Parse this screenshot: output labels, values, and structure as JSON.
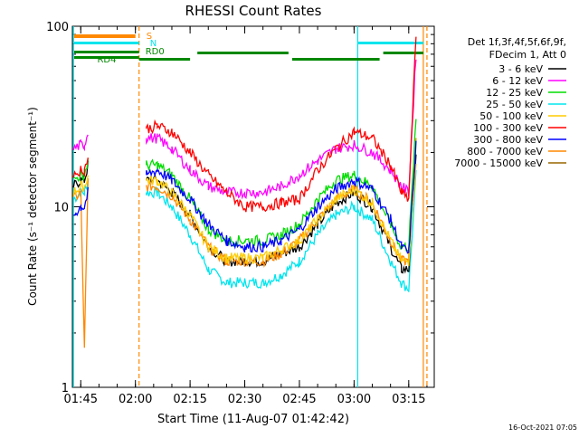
{
  "chart_data": {
    "type": "line",
    "title": "RHESSI Count Rates",
    "xlabel": "Start Time (11-Aug-07 01:42:42)",
    "ylabel": "Count Rate (s⁻¹ detector segment⁻¹)",
    "ylog": true,
    "ylim": [
      1,
      100
    ],
    "xlim": [
      "01:42:42",
      "03:22:00"
    ],
    "x_ticks": [
      "01:45",
      "02:00",
      "02:15",
      "02:30",
      "02:45",
      "03:00",
      "03:15"
    ],
    "y_ticks": [
      "1",
      "10",
      "100"
    ],
    "timestamp": "16-Oct-2021 07:05",
    "legend_position": "right",
    "legend_header": [
      "Det 1f,3f,4f,5f,6f,9f,",
      "FDecim 1, Att 0"
    ],
    "series": [
      {
        "name": "3 - 6 keV",
        "color": "#000000",
        "x": [
          "01:43",
          "01:45",
          "01:46",
          "01:47",
          "02:03",
          "02:06",
          "02:10",
          "02:15",
          "02:20",
          "02:25",
          "02:30",
          "02:35",
          "02:40",
          "02:45",
          "02:50",
          "02:55",
          "03:00",
          "03:05",
          "03:10",
          "03:13",
          "03:15",
          "03:17"
        ],
        "values": [
          13,
          14,
          14,
          17,
          14,
          14,
          12,
          9,
          6,
          5,
          5,
          5,
          5.5,
          6,
          8,
          10.5,
          12,
          10,
          6,
          4.5,
          4.5,
          20
        ]
      },
      {
        "name": "6 - 12 keV",
        "color": "#ff00ff",
        "x": [
          "01:43",
          "01:45",
          "01:46",
          "01:47",
          "02:03",
          "02:06",
          "02:10",
          "02:15",
          "02:20",
          "02:25",
          "02:30",
          "02:35",
          "02:40",
          "02:45",
          "02:50",
          "02:55",
          "03:00",
          "03:05",
          "03:10",
          "03:13",
          "03:15",
          "03:17"
        ],
        "values": [
          21,
          22,
          22,
          26,
          24,
          24,
          21,
          16,
          13,
          12,
          12,
          12,
          13,
          15,
          18,
          21,
          22,
          20,
          16,
          13,
          12,
          70
        ]
      },
      {
        "name": "12 - 25 keV",
        "color": "#00dd00",
        "x": [
          "01:43",
          "01:45",
          "01:46",
          "01:47",
          "02:03",
          "02:06",
          "02:10",
          "02:15",
          "02:20",
          "02:25",
          "02:30",
          "02:35",
          "02:40",
          "02:45",
          "02:50",
          "02:55",
          "03:00",
          "03:05",
          "03:10",
          "03:13",
          "03:15",
          "03:17"
        ],
        "values": [
          14,
          15,
          15,
          18,
          17,
          17,
          15,
          11,
          7.5,
          6.5,
          6.5,
          6.5,
          7,
          8,
          11,
          14,
          15,
          13,
          8,
          6,
          6,
          30
        ]
      },
      {
        "name": "25 - 50 keV",
        "color": "#00e5ee",
        "x": [
          "01:43",
          "01:45",
          "01:46",
          "01:47",
          "02:03",
          "02:06",
          "02:10",
          "02:15",
          "02:20",
          "02:25",
          "02:30",
          "02:35",
          "02:40",
          "02:45",
          "02:50",
          "02:55",
          "03:00",
          "03:05",
          "03:10",
          "03:13",
          "03:15",
          "03:17"
        ],
        "values": [
          11,
          12,
          12,
          14,
          12,
          12,
          10,
          7,
          4.5,
          3.8,
          3.8,
          3.8,
          4.2,
          5,
          7,
          9,
          10,
          8.5,
          5,
          3.8,
          3.5,
          15
        ]
      },
      {
        "name": "50 - 100 keV",
        "color": "#ffcc00",
        "x": [
          "01:43",
          "01:45",
          "01:46",
          "01:47",
          "02:03",
          "02:06",
          "02:10",
          "02:15",
          "02:20",
          "02:25",
          "02:30",
          "02:35",
          "02:40",
          "02:45",
          "02:50",
          "02:55",
          "03:00",
          "03:05",
          "03:10",
          "03:13",
          "03:15",
          "03:17"
        ],
        "values": [
          12,
          13,
          13,
          15,
          14,
          14,
          12,
          9,
          6,
          5.2,
          5.2,
          5.2,
          5.8,
          6.5,
          8.5,
          11,
          12.5,
          10.5,
          6.5,
          5,
          5,
          18
        ]
      },
      {
        "name": "100 - 300 keV",
        "color": "#ff0000",
        "x": [
          "01:43",
          "01:45",
          "01:46",
          "01:47",
          "02:03",
          "02:06",
          "02:10",
          "02:15",
          "02:20",
          "02:25",
          "02:30",
          "02:35",
          "02:40",
          "02:45",
          "02:50",
          "02:55",
          "03:00",
          "03:05",
          "03:10",
          "03:13",
          "03:15",
          "03:17"
        ],
        "values": [
          15,
          16,
          16,
          19,
          27,
          28,
          26,
          20,
          15,
          12,
          10,
          10,
          10.5,
          11,
          16,
          21,
          26,
          24,
          17,
          12,
          11,
          90
        ]
      },
      {
        "name": "300 - 800 keV",
        "color": "#0000ff",
        "x": [
          "01:43",
          "01:45",
          "01:46",
          "01:47",
          "02:03",
          "02:06",
          "02:10",
          "02:15",
          "02:20",
          "02:25",
          "02:30",
          "02:35",
          "02:40",
          "02:45",
          "02:50",
          "02:55",
          "03:00",
          "03:05",
          "03:10",
          "03:13",
          "03:15",
          "03:17"
        ],
        "values": [
          9,
          10,
          10,
          12,
          15,
          16,
          14,
          11,
          8,
          6.5,
          6,
          6,
          6.5,
          7.5,
          10,
          12.5,
          14,
          12.5,
          8.5,
          6,
          5.5,
          22
        ]
      },
      {
        "name": "800 - 7000 keV",
        "color": "#ff8800",
        "x": [
          "01:43",
          "01:45",
          "01:46",
          "01:47",
          "02:03",
          "02:06",
          "02:10",
          "02:15",
          "02:20",
          "02:25",
          "02:30",
          "02:35",
          "02:40",
          "02:45",
          "02:50",
          "02:55",
          "03:00",
          "03:05",
          "03:10",
          "03:13",
          "03:15",
          "03:17"
        ],
        "values": [
          11,
          12,
          1.6,
          14,
          13,
          13,
          11.5,
          8.5,
          6,
          5,
          5,
          5,
          5.5,
          6.5,
          8.5,
          11,
          12.5,
          10.5,
          6.5,
          5,
          5,
          25
        ]
      },
      {
        "name": "7000 - 15000 keV",
        "color": "#996600",
        "x": [
          "01:43",
          "01:45",
          "01:46",
          "01:47",
          "02:03",
          "02:06",
          "02:10",
          "02:15",
          "02:20",
          "02:25",
          "02:30",
          "02:35",
          "02:40",
          "02:45",
          "02:50",
          "02:55",
          "03:00",
          "03:05",
          "03:10",
          "03:13",
          "03:15",
          "03:17"
        ],
        "values": [
          null,
          null,
          null,
          null,
          null,
          null,
          null,
          null,
          null,
          null,
          null,
          null,
          null,
          null,
          null,
          null,
          null,
          null,
          null,
          null,
          null,
          null
        ]
      }
    ],
    "state_bars": [
      {
        "label": "S",
        "color": "#ff8800"
      },
      {
        "label": "N",
        "color": "#00e5ee"
      },
      {
        "label": "RD0",
        "color": "#008800"
      },
      {
        "label": "RD4",
        "color": "#008800"
      }
    ],
    "vertical_markers": [
      {
        "time": "01:43",
        "color": "#00e5ee",
        "style": "solid"
      },
      {
        "time": "02:01",
        "color": "#ff8800",
        "style": "dashed"
      },
      {
        "time": "03:01",
        "color": "#00e5ee",
        "style": "solid"
      },
      {
        "time": "03:19",
        "color": "#ff8800",
        "style": "solid"
      },
      {
        "time": "03:20",
        "color": "#ff8800",
        "style": "dashed"
      }
    ]
  }
}
